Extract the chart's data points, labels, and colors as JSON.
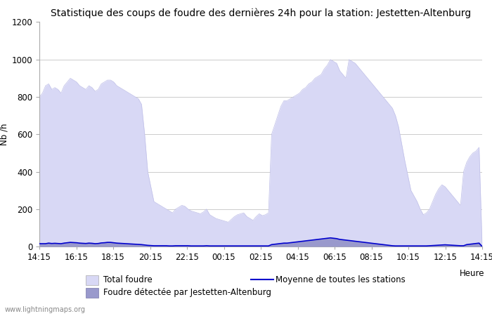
{
  "title": "Statistique des coups de foudre des dernières 24h pour la station: Jestetten-Altenburg",
  "xlabel": "Heure",
  "ylabel": "Nb /h",
  "ylim": [
    0,
    1200
  ],
  "yticks": [
    0,
    200,
    400,
    600,
    800,
    1000,
    1200
  ],
  "x_labels": [
    "14:15",
    "16:15",
    "18:15",
    "20:15",
    "22:15",
    "00:15",
    "02:15",
    "04:15",
    "06:15",
    "08:15",
    "10:15",
    "12:15",
    "14:15"
  ],
  "watermark": "www.lightningmaps.org",
  "legend": {
    "total_foudre_label": "Total foudre",
    "total_foudre_color": "#d8d8f5",
    "detected_label": "Foudre détectée par Jestetten-Altenburg",
    "detected_color": "#9999cc",
    "moyenne_label": "Moyenne de toutes les stations",
    "moyenne_color": "#0000cc"
  },
  "total_foudre_y": [
    800,
    820,
    860,
    870,
    840,
    850,
    840,
    820,
    860,
    880,
    900,
    890,
    880,
    860,
    850,
    840,
    860,
    850,
    830,
    840,
    870,
    880,
    890,
    890,
    880,
    860,
    850,
    840,
    830,
    820,
    810,
    800,
    790,
    760,
    600,
    400,
    320,
    240,
    230,
    220,
    210,
    200,
    190,
    180,
    200,
    210,
    220,
    215,
    200,
    190,
    185,
    180,
    175,
    185,
    200,
    170,
    160,
    150,
    145,
    140,
    135,
    130,
    145,
    160,
    170,
    175,
    180,
    160,
    150,
    140,
    160,
    175,
    165,
    170,
    180,
    600,
    650,
    700,
    750,
    780,
    780,
    790,
    800,
    810,
    820,
    840,
    850,
    870,
    880,
    900,
    910,
    920,
    950,
    970,
    1000,
    990,
    980,
    940,
    920,
    900,
    1000,
    990,
    980,
    960,
    940,
    920,
    900,
    880,
    860,
    840,
    820,
    800,
    780,
    760,
    740,
    700,
    640,
    550,
    460,
    380,
    300,
    270,
    240,
    200,
    170,
    180,
    200,
    240,
    280,
    310,
    330,
    320,
    300,
    280,
    260,
    240,
    220,
    400,
    450,
    480,
    500,
    510,
    530,
    0
  ],
  "detected_y": [
    15,
    15,
    15,
    18,
    16,
    17,
    16,
    15,
    18,
    20,
    22,
    21,
    20,
    18,
    17,
    16,
    18,
    17,
    15,
    16,
    19,
    20,
    22,
    22,
    20,
    18,
    17,
    16,
    15,
    14,
    13,
    12,
    11,
    10,
    8,
    6,
    5,
    4,
    4,
    4,
    4,
    4,
    3,
    3,
    4,
    4,
    4,
    4,
    4,
    3,
    3,
    3,
    3,
    3,
    4,
    3,
    3,
    3,
    3,
    3,
    3,
    3,
    3,
    3,
    3,
    3,
    3,
    3,
    3,
    3,
    3,
    3,
    3,
    3,
    3,
    10,
    12,
    14,
    16,
    18,
    18,
    20,
    22,
    24,
    26,
    28,
    30,
    32,
    34,
    36,
    38,
    40,
    42,
    44,
    46,
    44,
    42,
    38,
    36,
    34,
    32,
    30,
    28,
    26,
    24,
    22,
    20,
    18,
    16,
    14,
    12,
    10,
    8,
    6,
    4,
    3,
    3,
    3,
    3,
    3,
    3,
    3,
    3,
    3,
    3,
    3,
    4,
    5,
    6,
    7,
    8,
    9,
    8,
    7,
    6,
    5,
    4,
    4,
    10,
    12,
    14,
    16,
    18,
    0
  ],
  "moyenne_y": [
    15,
    15,
    15,
    18,
    16,
    17,
    16,
    15,
    18,
    20,
    22,
    21,
    20,
    18,
    17,
    16,
    18,
    17,
    15,
    16,
    19,
    20,
    22,
    22,
    20,
    18,
    17,
    16,
    15,
    14,
    13,
    12,
    11,
    10,
    8,
    6,
    5,
    4,
    4,
    4,
    4,
    4,
    3,
    3,
    4,
    4,
    4,
    4,
    4,
    3,
    3,
    3,
    3,
    3,
    4,
    3,
    3,
    3,
    3,
    3,
    3,
    3,
    3,
    3,
    3,
    3,
    3,
    3,
    3,
    3,
    3,
    3,
    3,
    3,
    3,
    10,
    12,
    14,
    16,
    18,
    18,
    20,
    22,
    24,
    26,
    28,
    30,
    32,
    34,
    36,
    38,
    40,
    42,
    44,
    46,
    44,
    42,
    38,
    36,
    34,
    32,
    30,
    28,
    26,
    24,
    22,
    20,
    18,
    16,
    14,
    12,
    10,
    8,
    6,
    4,
    3,
    3,
    3,
    3,
    3,
    3,
    3,
    3,
    3,
    3,
    3,
    4,
    5,
    6,
    7,
    8,
    9,
    8,
    7,
    6,
    5,
    4,
    4,
    10,
    12,
    14,
    16,
    18,
    0
  ],
  "background_color": "#ffffff",
  "plot_bg_color": "#ffffff",
  "grid_color": "#cccccc",
  "title_fontsize": 10,
  "axis_fontsize": 8.5
}
